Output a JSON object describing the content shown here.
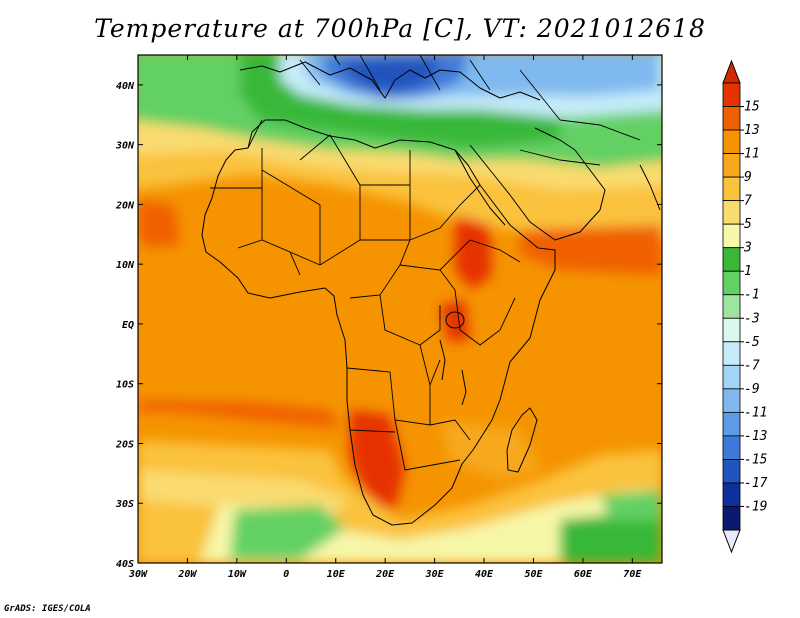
{
  "title": "Temperature at 700hPa [C], VT: 2021012618",
  "credit": "GrADS: IGES/COLA",
  "map": {
    "lon_range": [
      -30,
      76
    ],
    "lat_range": [
      -40,
      45
    ],
    "lon_ticks": [
      {
        "value": -30,
        "label": "30W"
      },
      {
        "value": -20,
        "label": "20W"
      },
      {
        "value": -10,
        "label": "10W"
      },
      {
        "value": 0,
        "label": "0"
      },
      {
        "value": 10,
        "label": "10E"
      },
      {
        "value": 20,
        "label": "20E"
      },
      {
        "value": 30,
        "label": "30E"
      },
      {
        "value": 40,
        "label": "40E"
      },
      {
        "value": 50,
        "label": "50E"
      },
      {
        "value": 60,
        "label": "60E"
      },
      {
        "value": 70,
        "label": "70E"
      }
    ],
    "lat_ticks": [
      {
        "value": 40,
        "label": "40N"
      },
      {
        "value": 30,
        "label": "30N"
      },
      {
        "value": 20,
        "label": "20N"
      },
      {
        "value": 10,
        "label": "10N"
      },
      {
        "value": 0,
        "label": "EQ"
      },
      {
        "value": -10,
        "label": "10S"
      },
      {
        "value": -20,
        "label": "20S"
      },
      {
        "value": -30,
        "label": "30S"
      },
      {
        "value": -40,
        "label": "40S"
      }
    ]
  },
  "colorbar": {
    "labels": [
      "15",
      "13",
      "11",
      "9",
      "7",
      "5",
      "3",
      "1",
      "-1",
      "-3",
      "-5",
      "-7",
      "-9",
      "-11",
      "-13",
      "-15",
      "-17",
      "-19"
    ],
    "colors": [
      "#e63200",
      "#f06000",
      "#f59400",
      "#f7a81e",
      "#fac23d",
      "#fadb70",
      "#f7f7a8",
      "#37b837",
      "#63d063",
      "#9de49d",
      "#dcf6f0",
      "#c6ecfa",
      "#a2d4f6",
      "#7fb9ef",
      "#5e9be6",
      "#3f7ad8",
      "#2353bd",
      "#0e2f9c",
      "#0a1a70"
    ],
    "top_color": "#d42a00",
    "bottom_color": "#e8e8ff"
  },
  "field": {
    "base_color": "#f59400",
    "regions": [
      {
        "name": "north-cold",
        "color": "#37b837"
      },
      {
        "name": "mediterranean-very-cold",
        "color": "#3f7ad8"
      },
      {
        "name": "sahara-mild",
        "color": "#fac23d"
      },
      {
        "name": "south-cold",
        "color": "#63d063"
      },
      {
        "name": "ethiopia-warm",
        "color": "#e63200"
      },
      {
        "name": "south-africa-warm",
        "color": "#e63200"
      }
    ]
  }
}
